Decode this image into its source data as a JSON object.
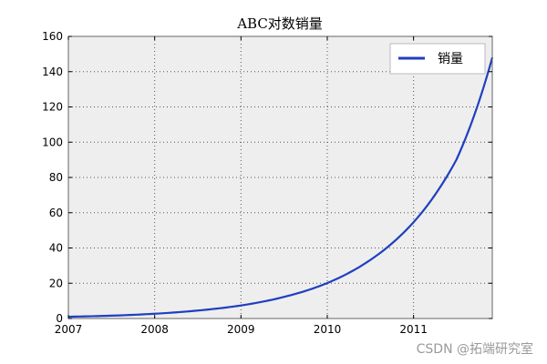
{
  "chart_data": {
    "type": "line",
    "title": "ABC对数销量",
    "xlabel": "",
    "ylabel": "",
    "xlim": [
      "2007-01-01",
      "2011-11-30"
    ],
    "ylim": [
      0,
      160
    ],
    "x_ticks": [
      "2007",
      "2008",
      "2009",
      "2010",
      "2011"
    ],
    "y_ticks": [
      0,
      20,
      40,
      60,
      80,
      100,
      120,
      140,
      160
    ],
    "grid": true,
    "legend_position": "top-right",
    "series": [
      {
        "name": "销量",
        "color": "#1f3fbf",
        "x": [
          "2007-01-01",
          "2007-07-01",
          "2008-01-01",
          "2008-07-01",
          "2009-01-01",
          "2009-07-01",
          "2010-01-01",
          "2010-07-01",
          "2011-01-01",
          "2011-07-01",
          "2011-11-30"
        ],
        "values": [
          1.0,
          1.6,
          2.7,
          4.5,
          7.4,
          12.2,
          20.1,
          33.1,
          54.6,
          90.0,
          148.0
        ]
      }
    ]
  },
  "watermark": "CSDN @拓端研究室"
}
